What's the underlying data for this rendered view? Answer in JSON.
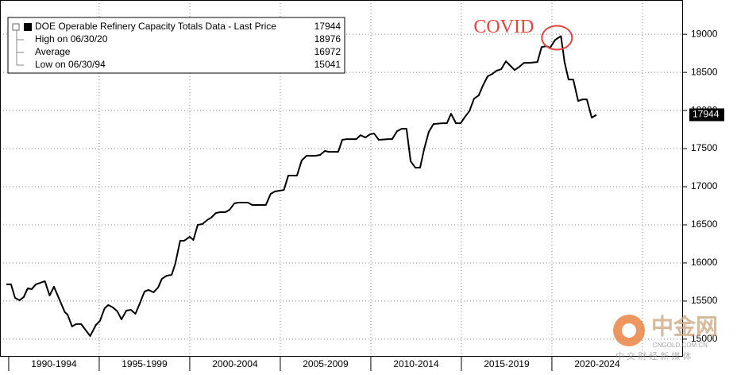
{
  "chart_data": {
    "type": "line",
    "x": [
      1989.87,
      1990.13,
      1990.35,
      1990.6,
      1990.83,
      1991.05,
      1991.27,
      1991.5,
      1992.0,
      1992.26,
      1992.5,
      1993.1,
      1993.25,
      1993.5,
      1993.73,
      1994.0,
      1994.5,
      1994.82,
      1995.04,
      1995.3,
      1995.5,
      1995.75,
      1996.0,
      1996.23,
      1996.5,
      1996.75,
      1997.0,
      1997.24,
      1997.5,
      1997.72,
      1998.0,
      1998.25,
      1998.46,
      1998.73,
      1999.0,
      1999.2,
      1999.47,
      1999.7,
      2000.0,
      2000.2,
      2000.44,
      2000.7,
      2000.96,
      2001.18,
      2001.45,
      2001.7,
      2001.97,
      2002.2,
      2002.46,
      2002.68,
      2002.94,
      2003.2,
      2003.46,
      2003.95,
      2004.2,
      2004.47,
      2004.7,
      2004.96,
      2005.2,
      2005.44,
      2005.92,
      2006.18,
      2006.45,
      2006.93,
      2007.2,
      2007.46,
      2007.68,
      2008.2,
      2008.42,
      2008.68,
      2009.2,
      2009.43,
      2009.7,
      2009.96,
      2010.18,
      2010.44,
      2010.96,
      2011.18,
      2011.45,
      2011.7,
      2011.97,
      2012.2,
      2012.46,
      2012.72,
      2012.94,
      2013.2,
      2013.46,
      2013.95,
      2014.2,
      2014.43,
      2014.7,
      2014.96,
      2015.2,
      2015.44,
      2015.7,
      2015.96,
      2016.18,
      2016.45,
      2016.7,
      2016.93,
      2017.2,
      2017.46,
      2017.68,
      2017.94,
      2018.2,
      2018.46,
      2018.73,
      2019.2,
      2019.43,
      2019.7,
      2019.9,
      2020.18,
      2020.5,
      2020.7,
      2020.92,
      2021.18,
      2021.45,
      2021.7,
      2021.93,
      2022.2,
      2022.46
    ],
    "series": [
      {
        "name": "DOE Operable Refinery Capacity Totals Data - Last Price",
        "color": "#000000",
        "values": [
          15719,
          15719,
          15542,
          15510,
          15552,
          15667,
          15656,
          15719,
          15760,
          15573,
          15688,
          15354,
          15323,
          15167,
          15198,
          15198,
          15041,
          15188,
          15240,
          15406,
          15448,
          15417,
          15365,
          15260,
          15375,
          15385,
          15333,
          15469,
          15625,
          15646,
          15615,
          15677,
          15792,
          15833,
          15844,
          15990,
          16292,
          16292,
          16344,
          16302,
          16500,
          16510,
          16563,
          16594,
          16656,
          16667,
          16667,
          16698,
          16781,
          16792,
          16792,
          16792,
          16760,
          16760,
          16760,
          16906,
          16938,
          16948,
          16958,
          17146,
          17146,
          17344,
          17406,
          17406,
          17417,
          17469,
          17458,
          17458,
          17615,
          17625,
          17625,
          17677,
          17646,
          17688,
          17698,
          17615,
          17625,
          17625,
          17729,
          17760,
          17760,
          17333,
          17250,
          17250,
          17490,
          17719,
          17823,
          17833,
          17833,
          17958,
          17833,
          17833,
          17917,
          17990,
          18156,
          18198,
          18323,
          18448,
          18479,
          18521,
          18542,
          18646,
          18594,
          18531,
          18573,
          18625,
          18625,
          18635,
          18833,
          18844,
          18823,
          18927,
          18976,
          18635,
          18406,
          18406,
          18125,
          18146,
          18146,
          17906,
          17944
        ]
      }
    ],
    "last_price": 17944,
    "legend": [
      {
        "label": "High on 06/30/20",
        "value": 18976
      },
      {
        "label": "Average",
        "value": 16972
      },
      {
        "label": "Low on 06/30/94",
        "value": 15041
      }
    ],
    "xlim": [
      1989.52,
      2027.24
    ],
    "xticks": [
      {
        "value": 1992.5,
        "label": "1990-1994"
      },
      {
        "value": 1997.5,
        "label": "1995-1999"
      },
      {
        "value": 2002.5,
        "label": "2000-2004"
      },
      {
        "value": 2007.5,
        "label": "2005-2009"
      },
      {
        "value": 2012.5,
        "label": "2010-2014"
      },
      {
        "value": 2017.5,
        "label": "2015-2019"
      },
      {
        "value": 2022.5,
        "label": "2020-2024"
      }
    ],
    "ylim": [
      14780,
      19450
    ],
    "yticks": [
      15000,
      15500,
      16000,
      16500,
      17000,
      17500,
      18000,
      18500,
      19000
    ],
    "grid": true,
    "annotation": "COVID",
    "annotation_color": "#e8453c"
  },
  "watermark": {
    "brand": "中金网",
    "url": "CNGOLD.COM.CN",
    "tagline": "中 文 财 经 新 媒 体"
  }
}
